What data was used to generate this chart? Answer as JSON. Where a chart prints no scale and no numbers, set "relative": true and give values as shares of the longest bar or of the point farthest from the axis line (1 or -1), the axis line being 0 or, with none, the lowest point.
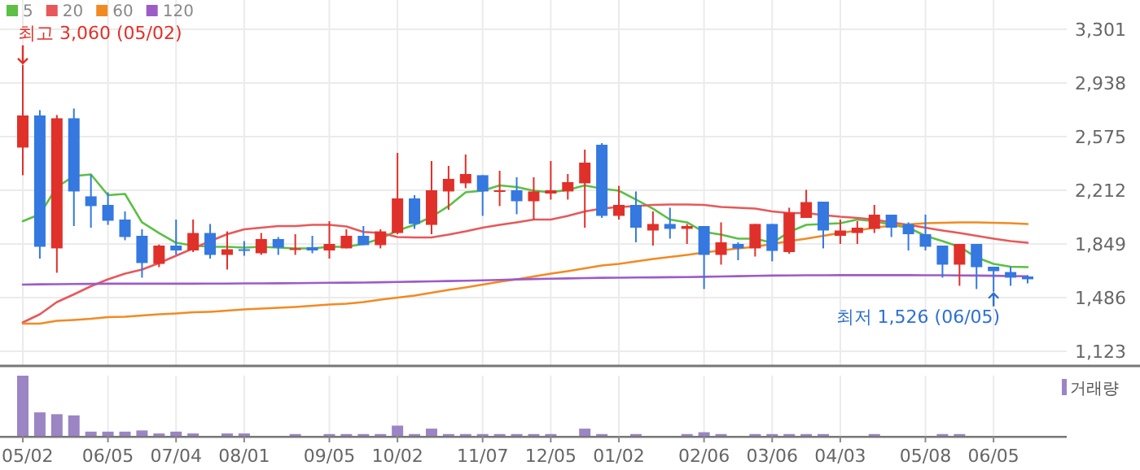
{
  "chart_data": [
    {
      "type": "candlestick",
      "categories": [
        "05/02",
        null,
        null,
        null,
        null,
        "06/05",
        null,
        null,
        null,
        "07/04",
        null,
        null,
        null,
        "08/01",
        null,
        null,
        null,
        null,
        "09/05",
        null,
        null,
        null,
        "10/02",
        null,
        null,
        null,
        null,
        "11/07",
        null,
        null,
        null,
        "12/05",
        null,
        null,
        null,
        "01/02",
        null,
        null,
        null,
        null,
        "02/06",
        null,
        null,
        null,
        "03/06",
        null,
        null,
        null,
        "04/03",
        null,
        null,
        null,
        null,
        "05/08",
        null,
        null,
        null,
        "06/05",
        null,
        null
      ],
      "ohlc": [
        [
          2501,
          3060,
          2314,
          2718
        ],
        [
          2718,
          2754,
          1750,
          1830
        ],
        [
          1819,
          2721,
          1654,
          2699
        ],
        [
          2699,
          2765,
          1970,
          2204
        ],
        [
          2171,
          2319,
          1959,
          2105
        ],
        [
          2113,
          2198,
          1978,
          2006
        ],
        [
          2014,
          2069,
          1874,
          1896
        ],
        [
          1904,
          1948,
          1621,
          1720
        ],
        [
          1714,
          1845,
          1692,
          1838
        ],
        [
          1838,
          2014,
          1775,
          1805
        ],
        [
          1805,
          2014,
          1794,
          1923
        ],
        [
          1923,
          1984,
          1750,
          1775
        ],
        [
          1775,
          1934,
          1676,
          1813
        ],
        [
          1813,
          1868,
          1769,
          1808
        ],
        [
          1786,
          1923,
          1775,
          1882
        ],
        [
          1882,
          1896,
          1775,
          1824
        ],
        [
          1811,
          1915,
          1775,
          1819
        ],
        [
          1827,
          1904,
          1786,
          1805
        ],
        [
          1805,
          2003,
          1750,
          1849
        ],
        [
          1819,
          1948,
          1819,
          1904
        ],
        [
          1904,
          1970,
          1841,
          1841
        ],
        [
          1841,
          1948,
          1819,
          1934
        ],
        [
          1923,
          2465,
          1915,
          2157
        ],
        [
          2157,
          2179,
          1951,
          1984
        ],
        [
          1978,
          2410,
          1915,
          2212
        ],
        [
          2204,
          2377,
          2080,
          2289
        ],
        [
          2259,
          2454,
          2226,
          2322
        ],
        [
          2314,
          2314,
          2039,
          2204
        ],
        [
          2204,
          2344,
          2105,
          2212
        ],
        [
          2212,
          2300,
          2050,
          2138
        ],
        [
          2138,
          2300,
          2014,
          2204
        ],
        [
          2190,
          2410,
          2149,
          2212
        ],
        [
          2204,
          2322,
          2149,
          2267
        ],
        [
          2259,
          2487,
          1959,
          2399
        ],
        [
          2520,
          2531,
          2025,
          2039
        ],
        [
          2039,
          2242,
          2014,
          2113
        ],
        [
          2113,
          2204,
          1860,
          1959
        ],
        [
          1940,
          2069,
          1838,
          1984
        ],
        [
          1984,
          2094,
          1885,
          1951
        ],
        [
          1951,
          1984,
          1849,
          1970
        ],
        [
          1970,
          1970,
          1544,
          1775
        ],
        [
          1775,
          1995,
          1709,
          1860
        ],
        [
          1849,
          1860,
          1739,
          1819
        ],
        [
          1819,
          1984,
          1764,
          1984
        ],
        [
          1984,
          1984,
          1731,
          1802
        ],
        [
          1794,
          2094,
          1783,
          2061
        ],
        [
          2025,
          2215,
          2025,
          2132
        ],
        [
          2135,
          2135,
          1819,
          1940
        ],
        [
          1904,
          2014,
          1849,
          1940
        ],
        [
          1923,
          2003,
          1849,
          1959
        ],
        [
          1951,
          2113,
          1923,
          2047
        ],
        [
          2047,
          2047,
          1896,
          1959
        ],
        [
          1984,
          1995,
          1805,
          1915
        ],
        [
          1915,
          2047,
          1805,
          1830
        ],
        [
          1838,
          1838,
          1621,
          1709
        ],
        [
          1709,
          1849,
          1566,
          1849
        ],
        [
          1849,
          1849,
          1544,
          1692
        ],
        [
          1695,
          1695,
          1526,
          1665
        ],
        [
          1659,
          1695,
          1566,
          1621
        ],
        [
          1629,
          1637,
          1582,
          1610
        ]
      ],
      "colors": [
        "#e0302a",
        "#3478e0",
        "#e0302a",
        "#3478e0",
        "#3478e0",
        "#3478e0",
        "#3478e0",
        "#3478e0",
        "#e0302a",
        "#3478e0",
        "#e0302a",
        "#3478e0",
        "#e0302a",
        "#3478e0",
        "#e0302a",
        "#3478e0",
        "#e0302a",
        "#3478e0",
        "#e0302a",
        "#e0302a",
        "#3478e0",
        "#e0302a",
        "#e0302a",
        "#3478e0",
        "#e0302a",
        "#e0302a",
        "#e0302a",
        "#3478e0",
        "#e0302a",
        "#3478e0",
        "#e0302a",
        "#e0302a",
        "#e0302a",
        "#e0302a",
        "#3478e0",
        "#e0302a",
        "#3478e0",
        "#e0302a",
        "#3478e0",
        "#e0302a",
        "#3478e0",
        "#e0302a",
        "#3478e0",
        "#e0302a",
        "#3478e0",
        "#e0302a",
        "#e0302a",
        "#3478e0",
        "#e0302a",
        "#e0302a",
        "#e0302a",
        "#3478e0",
        "#3478e0",
        "#3478e0",
        "#3478e0",
        "#e0302a",
        "#3478e0",
        "#3478e0",
        "#3478e0",
        "#3478e0"
      ],
      "series": [
        {
          "name": "5",
          "type": "line",
          "color": "#5cbf46",
          "values": [
            2003,
            2050,
            2234,
            2308,
            2319,
            2179,
            2187,
            1995,
            1923,
            1857,
            1838,
            1830,
            1830,
            1824,
            1830,
            1824,
            1819,
            1819,
            1830,
            1830,
            1849,
            1885,
            1940,
            1978,
            2033,
            2105,
            2198,
            2209,
            2245,
            2234,
            2209,
            2198,
            2215,
            2245,
            2223,
            2209,
            2149,
            2088,
            2014,
            1995,
            1930,
            1912,
            1885,
            1885,
            1857,
            1930,
            1978,
            1984,
            1989,
            2014,
            2003,
            1978,
            1959,
            1904,
            1868,
            1830,
            1758,
            1714,
            1695,
            1692
          ]
        },
        {
          "name": "20",
          "type": "line",
          "color": "#e8585a",
          "values": [
            1318,
            1373,
            1456,
            1508,
            1563,
            1610,
            1648,
            1676,
            1720,
            1769,
            1819,
            1868,
            1915,
            1948,
            1959,
            1970,
            1970,
            1978,
            1978,
            1967,
            1930,
            1923,
            1896,
            1893,
            1893,
            1912,
            1934,
            1959,
            1978,
            1995,
            2014,
            2014,
            2039,
            2069,
            2088,
            2099,
            2105,
            2113,
            2116,
            2116,
            2113,
            2099,
            2094,
            2088,
            2069,
            2058,
            2058,
            2044,
            2033,
            2025,
            2014,
            1995,
            1978,
            1959,
            1940,
            1923,
            1904,
            1885,
            1868,
            1857
          ]
        },
        {
          "name": "60",
          "type": "line",
          "color": "#f28a22",
          "values": [
            1310,
            1310,
            1329,
            1335,
            1343,
            1354,
            1357,
            1365,
            1373,
            1379,
            1387,
            1390,
            1398,
            1406,
            1412,
            1417,
            1423,
            1431,
            1439,
            1445,
            1456,
            1472,
            1486,
            1500,
            1519,
            1538,
            1555,
            1574,
            1593,
            1610,
            1629,
            1648,
            1665,
            1684,
            1703,
            1714,
            1731,
            1747,
            1761,
            1775,
            1791,
            1805,
            1819,
            1830,
            1849,
            1868,
            1885,
            1904,
            1923,
            1940,
            1959,
            1973,
            1981,
            1989,
            1992,
            1995,
            1995,
            1992,
            1989,
            1984
          ]
        },
        {
          "name": "120",
          "type": "line",
          "color": "#9c5cc8",
          "values": [
            1574,
            1576,
            1577,
            1578,
            1579,
            1580,
            1580,
            1580,
            1580,
            1580,
            1580,
            1581,
            1581,
            1582,
            1582,
            1583,
            1584,
            1585,
            1586,
            1587,
            1588,
            1590,
            1592,
            1594,
            1596,
            1598,
            1600,
            1603,
            1606,
            1609,
            1612,
            1614,
            1616,
            1618,
            1620,
            1621,
            1622,
            1623,
            1624,
            1625,
            1627,
            1629,
            1631,
            1633,
            1635,
            1636,
            1637,
            1637,
            1638,
            1638,
            1638,
            1638,
            1638,
            1637,
            1637,
            1636,
            1635,
            1634,
            1632,
            1630
          ]
        }
      ],
      "ylim": [
        1024,
        3499
      ],
      "yticks": [
        {
          "value": 1123,
          "label": "1,123"
        },
        {
          "value": 1486,
          "label": "1,486"
        },
        {
          "value": 1849,
          "label": "1,849"
        },
        {
          "value": 2212,
          "label": "2,212"
        },
        {
          "value": 2575,
          "label": "2,575"
        },
        {
          "value": 2938,
          "label": "2,938"
        },
        {
          "value": 3301,
          "label": "3,301"
        }
      ],
      "grid": true,
      "legend": "top left",
      "tick_labels": "y",
      "annotations": [
        {
          "text": "최고 3,060 (05/02)",
          "x": "05/02",
          "y": 3060
        },
        "최저 1,526 (06/05)"
      ]
    },
    {
      "type": "bar",
      "relative": true,
      "tick_labels": "x",
      "grid": "x",
      "legend": "top right",
      "categories": [
        "05/02",
        null,
        null,
        null,
        null,
        "06/05",
        null,
        null,
        null,
        "07/04",
        null,
        null,
        null,
        "08/01",
        null,
        null,
        null,
        null,
        "09/05",
        null,
        null,
        null,
        "10/02",
        null,
        null,
        null,
        null,
        "11/07",
        null,
        null,
        null,
        "12/05",
        null,
        null,
        null,
        "01/02",
        null,
        null,
        null,
        null,
        "02/06",
        null,
        null,
        null,
        "03/06",
        null,
        null,
        null,
        "04/03",
        null,
        null,
        null,
        null,
        "05/08",
        null,
        null,
        null,
        "06/05",
        null,
        null
      ],
      "series": [
        {
          "name": "거래량",
          "color": "#9b85c4",
          "values": [
            1,
            0.39,
            0.36,
            0.34,
            0.07,
            0.07,
            0.07,
            0.09,
            0.04,
            0.07,
            0.04,
            null,
            0.04,
            0.04,
            null,
            null,
            0.03,
            null,
            0.03,
            0.03,
            0.03,
            0.03,
            0.17,
            0.03,
            0.12,
            0.03,
            0.03,
            0.03,
            0.03,
            0.03,
            0.03,
            0.03,
            null,
            0.12,
            0.03,
            null,
            0.03,
            null,
            null,
            0.03,
            0.06,
            0.03,
            null,
            0.03,
            0.03,
            0.03,
            0.03,
            0.03,
            null,
            null,
            0.03,
            null,
            null,
            null,
            0.03,
            0.03,
            null,
            null,
            null,
            null
          ]
        }
      ]
    }
  ]
}
